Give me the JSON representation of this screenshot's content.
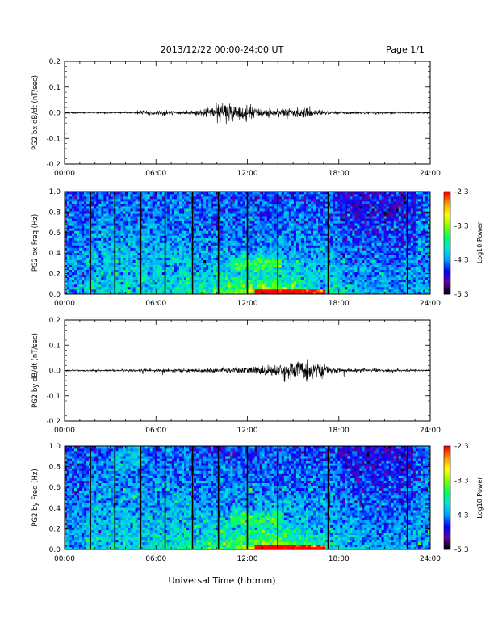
{
  "header": {
    "title": "2013/12/22  00:00-24:00 UT",
    "page": "Page 1/1"
  },
  "xlabel": "Universal Time (hh:mm)",
  "time_ticks": [
    "00:00",
    "06:00",
    "12:00",
    "18:00",
    "24:00"
  ],
  "colorbar": {
    "label": "Log10 Power",
    "ticks": [
      "-2.3",
      "-3.3",
      "-4.3",
      "-5.3"
    ],
    "range": [
      -5.3,
      -2.3
    ],
    "colors": [
      "#000000",
      "#6a00a8",
      "#0000ff",
      "#00a0ff",
      "#00e0e0",
      "#00ff60",
      "#80ff00",
      "#ffff00",
      "#ffa000",
      "#ff0000"
    ]
  },
  "chart_data": [
    {
      "type": "line",
      "ylabel": "PG2 bx dB/dt (nT/sec)",
      "xlim_hours": [
        0,
        24
      ],
      "ylim": [
        -0.2,
        0.2
      ],
      "yticks": [
        "0.2",
        "0.1",
        "0.0",
        "-0.1",
        "-0.2"
      ],
      "description_points_hours": [
        0,
        4.5,
        5.0,
        8,
        9.5,
        10.5,
        11.5,
        13,
        14.5,
        16,
        17.5,
        24
      ],
      "amplitude_envelope": [
        0.003,
        0.004,
        0.012,
        0.008,
        0.015,
        0.05,
        0.03,
        0.02,
        0.02,
        0.018,
        0.006,
        0.003
      ]
    },
    {
      "type": "heatmap",
      "ylabel": "PG2 bx Freq (Hz)",
      "xlim_hours": [
        0,
        24
      ],
      "ylim": [
        0.0,
        1.0
      ],
      "yticks": [
        "1.0",
        "0.8",
        "0.6",
        "0.4",
        "0.2",
        "0.0"
      ],
      "gap_lines_hours": [
        1.7,
        3.3,
        5.0,
        6.6,
        8.4,
        10.1,
        12.0,
        14.0,
        17.3,
        22.5
      ]
    },
    {
      "type": "line",
      "ylabel": "PG2 by dB/dt (nT/sec)",
      "xlim_hours": [
        0,
        24
      ],
      "ylim": [
        -0.2,
        0.2
      ],
      "yticks": [
        "0.2",
        "0.1",
        "0.0",
        "-0.1",
        "-0.2"
      ],
      "description_points_hours": [
        0,
        4.5,
        5.0,
        8,
        10,
        12,
        14,
        16,
        17.5,
        24
      ],
      "amplitude_envelope": [
        0.003,
        0.004,
        0.008,
        0.006,
        0.012,
        0.015,
        0.025,
        0.05,
        0.01,
        0.003
      ]
    },
    {
      "type": "heatmap",
      "ylabel": "PG2 by Freq (Hz)",
      "xlim_hours": [
        0,
        24
      ],
      "ylim": [
        0.0,
        1.0
      ],
      "yticks": [
        "1.0",
        "0.8",
        "0.6",
        "0.4",
        "0.2",
        "0.0"
      ],
      "gap_lines_hours": [
        1.7,
        3.3,
        5.0,
        6.6,
        8.4,
        10.1,
        12.0,
        14.0,
        17.3,
        22.5
      ]
    }
  ]
}
